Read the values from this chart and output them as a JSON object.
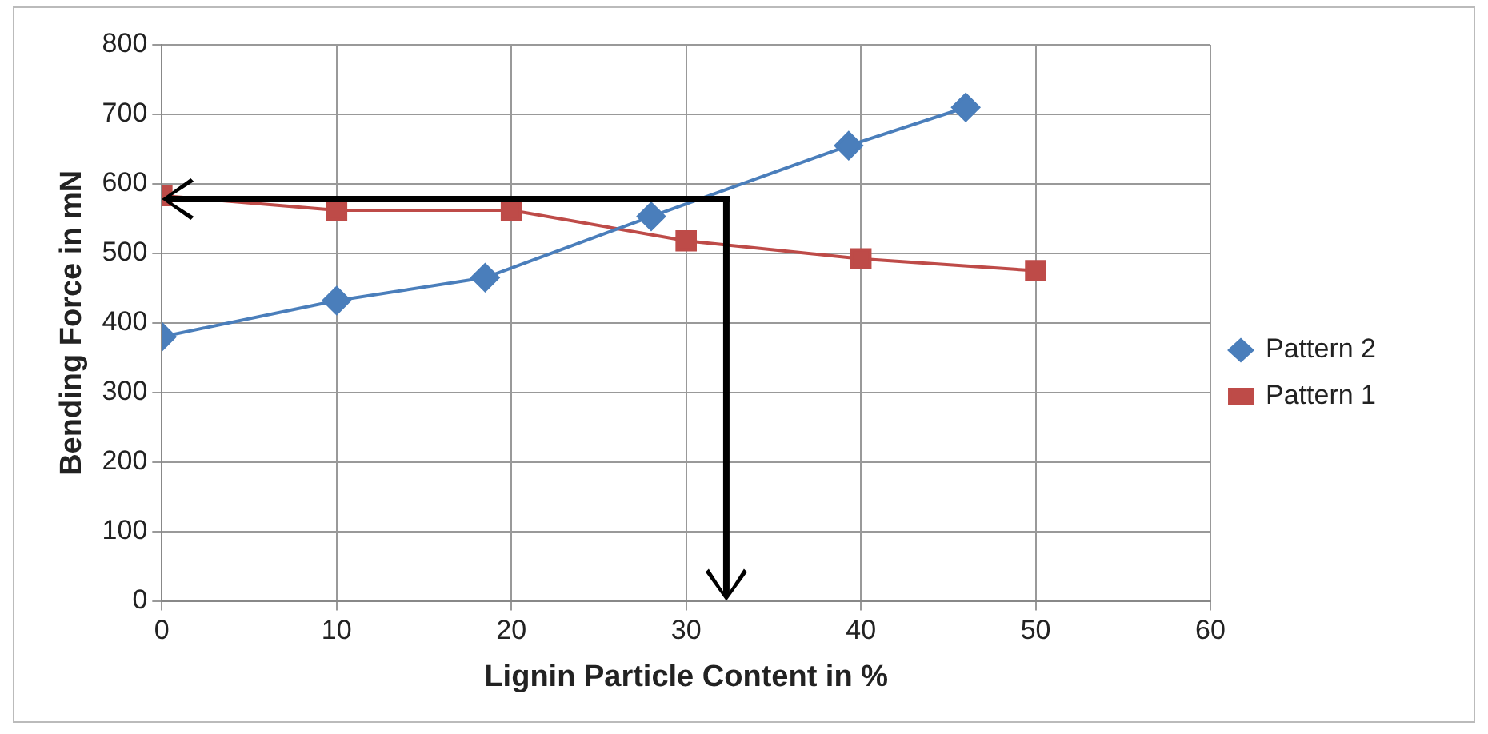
{
  "chart_data": {
    "type": "line",
    "xlabel": "Lignin Particle Content in %",
    "ylabel": "Bending Force in mN",
    "xlim": [
      0,
      60
    ],
    "xticks": [
      0,
      10,
      20,
      30,
      40,
      50,
      60
    ],
    "ylim": [
      0,
      800
    ],
    "yticks": [
      0,
      100,
      200,
      300,
      400,
      500,
      600,
      700,
      800
    ],
    "grid": true,
    "legend": "right",
    "line_style": "solid",
    "series": [
      {
        "name": "Pattern 2",
        "color": "#4a7ebb",
        "marker": "diamond",
        "x": [
          0,
          10,
          18.5,
          28,
          39.3,
          46
        ],
        "values": [
          380,
          432,
          465,
          553,
          655,
          710
        ]
      },
      {
        "name": "Pattern 1",
        "color": "#be4b48",
        "marker": "square",
        "x": [
          0,
          10,
          20,
          30,
          40,
          50
        ],
        "values": [
          583,
          562,
          562,
          518,
          492,
          475
        ]
      }
    ]
  }
}
